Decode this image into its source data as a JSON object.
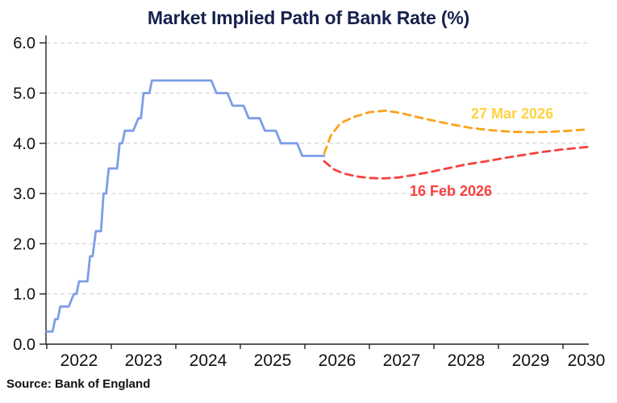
{
  "title": "Market Implied Path of Bank Rate (%)",
  "source": "Source: Bank of England",
  "colors": {
    "title": "#17214E",
    "axis": "#222222",
    "tick_label": "#111111",
    "grid": "#CBCBCB",
    "history_line": "#7D9DE8",
    "mar_line": "#FAA21C",
    "mar_label": "#FFD23F",
    "feb_line": "#F5413F",
    "feb_label": "#F5413F"
  },
  "chart_data": {
    "type": "line",
    "title": "Market Implied Path of Bank Rate (%)",
    "xlabel": "",
    "ylabel": "",
    "xlim": [
      2021.99,
      2030.4
    ],
    "ylim": [
      0,
      6
    ],
    "grid": "horizontal-dashed",
    "legend_position": "inline-labels",
    "x_tick_values": [
      2022,
      2023,
      2024,
      2025,
      2026,
      2027,
      2028,
      2029,
      2030
    ],
    "x_tick_labels": [
      "2022",
      "2023",
      "2024",
      "2025",
      "2026",
      "2027",
      "2028",
      "2029",
      "2030"
    ],
    "y_tick_values": [
      0,
      1,
      2,
      3,
      4,
      5,
      6
    ],
    "y_tick_labels": [
      "0.0",
      "1.0",
      "2.0",
      "3.0",
      "4.0",
      "5.0",
      "6.0"
    ],
    "series": [
      {
        "id": "bank-rate-history",
        "label": "",
        "style": "solid",
        "color": "#7D9DE8",
        "points": [
          [
            2022.0,
            0.25
          ],
          [
            2022.09,
            0.25
          ],
          [
            2022.13,
            0.5
          ],
          [
            2022.17,
            0.5
          ],
          [
            2022.21,
            0.75
          ],
          [
            2022.34,
            0.75
          ],
          [
            2022.42,
            1.0
          ],
          [
            2022.46,
            1.0
          ],
          [
            2022.5,
            1.25
          ],
          [
            2022.63,
            1.25
          ],
          [
            2022.67,
            1.75
          ],
          [
            2022.71,
            1.75
          ],
          [
            2022.76,
            2.25
          ],
          [
            2022.84,
            2.25
          ],
          [
            2022.88,
            3.0
          ],
          [
            2022.92,
            3.0
          ],
          [
            2022.96,
            3.5
          ],
          [
            2023.09,
            3.5
          ],
          [
            2023.13,
            4.0
          ],
          [
            2023.17,
            4.0
          ],
          [
            2023.21,
            4.25
          ],
          [
            2023.34,
            4.25
          ],
          [
            2023.42,
            4.5
          ],
          [
            2023.46,
            4.5
          ],
          [
            2023.5,
            5.0
          ],
          [
            2023.59,
            5.0
          ],
          [
            2023.63,
            5.25
          ],
          [
            2024.55,
            5.25
          ],
          [
            2024.63,
            5.0
          ],
          [
            2024.8,
            5.0
          ],
          [
            2024.88,
            4.75
          ],
          [
            2025.05,
            4.75
          ],
          [
            2025.13,
            4.5
          ],
          [
            2025.3,
            4.5
          ],
          [
            2025.38,
            4.25
          ],
          [
            2025.55,
            4.25
          ],
          [
            2025.63,
            4.0
          ],
          [
            2025.88,
            4.0
          ],
          [
            2025.96,
            3.75
          ],
          [
            2026.3,
            3.75
          ]
        ]
      },
      {
        "id": "path-27-mar-2026",
        "label": "27 Mar 2026",
        "style": "dashed",
        "color": "#FAA21C",
        "label_color": "#FFD23F",
        "points": [
          [
            2026.3,
            3.8
          ],
          [
            2026.4,
            4.15
          ],
          [
            2026.55,
            4.4
          ],
          [
            2026.75,
            4.52
          ],
          [
            2027.0,
            4.62
          ],
          [
            2027.25,
            4.65
          ],
          [
            2027.5,
            4.6
          ],
          [
            2027.75,
            4.52
          ],
          [
            2028.0,
            4.45
          ],
          [
            2028.3,
            4.37
          ],
          [
            2028.6,
            4.3
          ],
          [
            2028.9,
            4.26
          ],
          [
            2029.2,
            4.23
          ],
          [
            2029.5,
            4.22
          ],
          [
            2029.8,
            4.23
          ],
          [
            2030.1,
            4.25
          ],
          [
            2030.4,
            4.28
          ]
        ]
      },
      {
        "id": "path-16-feb-2026",
        "label": "16 Feb 2026",
        "style": "dashed",
        "color": "#F5413F",
        "label_color": "#F5413F",
        "points": [
          [
            2026.3,
            3.64
          ],
          [
            2026.45,
            3.48
          ],
          [
            2026.6,
            3.4
          ],
          [
            2026.8,
            3.34
          ],
          [
            2027.0,
            3.31
          ],
          [
            2027.2,
            3.3
          ],
          [
            2027.45,
            3.32
          ],
          [
            2027.7,
            3.37
          ],
          [
            2027.95,
            3.43
          ],
          [
            2028.2,
            3.5
          ],
          [
            2028.5,
            3.58
          ],
          [
            2028.8,
            3.64
          ],
          [
            2029.1,
            3.71
          ],
          [
            2029.4,
            3.77
          ],
          [
            2029.7,
            3.83
          ],
          [
            2030.0,
            3.88
          ],
          [
            2030.4,
            3.93
          ]
        ]
      }
    ]
  }
}
